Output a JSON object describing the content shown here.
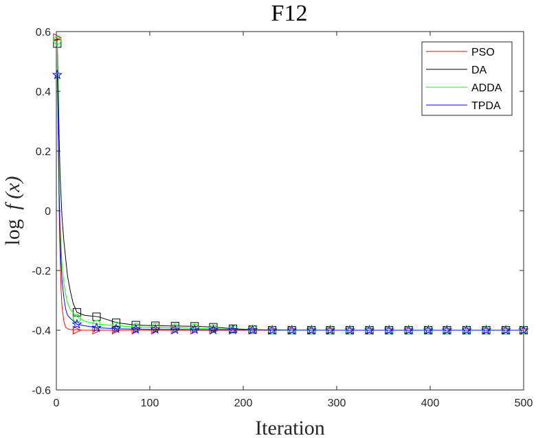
{
  "chart_data": {
    "type": "line",
    "title": "F12",
    "xlabel": "Iteration",
    "ylabel_prefix": "log",
    "ylabel_func": "f",
    "ylabel_arg": "(x)",
    "xlim": [
      0,
      500
    ],
    "ylim": [
      -0.6,
      0.6
    ],
    "xticks": [
      0,
      100,
      200,
      300,
      400,
      500
    ],
    "xtick_labels": [
      "0",
      "100",
      "200",
      "300",
      "400",
      "500"
    ],
    "yticks": [
      -0.6,
      -0.4,
      -0.2,
      0,
      0.2,
      0.4,
      0.6
    ],
    "ytick_labels": [
      "-0.6",
      "-0.4",
      "-0.2",
      "0",
      "0.2",
      "0.4",
      "0.6"
    ],
    "grid": false,
    "legend_position": "top-right",
    "series": [
      {
        "name": "PSO",
        "color": "#ff0000",
        "marker": "triangle-right",
        "x": [
          1,
          2,
          3,
          4,
          5,
          6,
          8,
          10,
          12,
          15,
          20,
          30,
          50,
          100,
          200,
          300,
          400,
          500
        ],
        "y": [
          0.58,
          0.3,
          0.0,
          -0.15,
          -0.26,
          -0.32,
          -0.37,
          -0.39,
          -0.395,
          -0.398,
          -0.399,
          -0.4,
          -0.4,
          -0.4,
          -0.4,
          -0.4,
          -0.4,
          -0.4
        ],
        "marker_x": [
          1,
          22,
          43,
          64,
          85,
          106,
          127,
          148,
          168,
          189,
          210,
          231,
          252,
          273,
          293,
          314,
          335,
          356,
          377,
          398,
          418,
          439,
          460,
          481,
          500
        ],
        "marker_y": [
          0.58,
          -0.4,
          -0.4,
          -0.4,
          -0.4,
          -0.4,
          -0.4,
          -0.4,
          -0.4,
          -0.4,
          -0.4,
          -0.4,
          -0.4,
          -0.4,
          -0.4,
          -0.4,
          -0.4,
          -0.4,
          -0.4,
          -0.4,
          -0.4,
          -0.4,
          -0.4,
          -0.4,
          -0.4
        ]
      },
      {
        "name": "DA",
        "color": "#000000",
        "marker": "square",
        "x": [
          1,
          2,
          3,
          4,
          6,
          8,
          10,
          12,
          15,
          18,
          22,
          30,
          45,
          65,
          85,
          110,
          150,
          170,
          190,
          210,
          250,
          300,
          400,
          500
        ],
        "y": [
          0.56,
          0.42,
          0.25,
          0.12,
          -0.02,
          -0.1,
          -0.16,
          -0.22,
          -0.27,
          -0.31,
          -0.34,
          -0.35,
          -0.355,
          -0.375,
          -0.383,
          -0.385,
          -0.387,
          -0.39,
          -0.395,
          -0.398,
          -0.4,
          -0.4,
          -0.4,
          -0.4
        ],
        "marker_x": [
          1,
          22,
          43,
          64,
          85,
          106,
          127,
          148,
          168,
          189,
          210,
          231,
          252,
          273,
          293,
          314,
          335,
          356,
          377,
          398,
          418,
          439,
          460,
          481,
          500
        ],
        "marker_y": [
          0.56,
          -0.34,
          -0.355,
          -0.375,
          -0.383,
          -0.385,
          -0.386,
          -0.387,
          -0.39,
          -0.395,
          -0.398,
          -0.4,
          -0.4,
          -0.4,
          -0.4,
          -0.4,
          -0.4,
          -0.4,
          -0.4,
          -0.4,
          -0.4,
          -0.4,
          -0.4,
          -0.4,
          -0.4
        ]
      },
      {
        "name": "ADDA",
        "color": "#00ff00",
        "marker": "circle",
        "x": [
          1,
          2,
          3,
          4,
          6,
          8,
          10,
          12,
          15,
          20,
          30,
          45,
          65,
          90,
          130,
          170,
          200,
          250,
          300,
          400,
          500
        ],
        "y": [
          0.57,
          0.3,
          0.08,
          -0.05,
          -0.18,
          -0.24,
          -0.28,
          -0.31,
          -0.33,
          -0.35,
          -0.37,
          -0.38,
          -0.385,
          -0.39,
          -0.392,
          -0.395,
          -0.398,
          -0.4,
          -0.4,
          -0.4,
          -0.4
        ],
        "marker_x": [
          1,
          22,
          43,
          64,
          85,
          106,
          127,
          148,
          168,
          189,
          210,
          231,
          252,
          273,
          293,
          314,
          335,
          356,
          377,
          398,
          418,
          439,
          460,
          481,
          500
        ],
        "marker_y": [
          0.57,
          -0.36,
          -0.38,
          -0.385,
          -0.39,
          -0.39,
          -0.391,
          -0.392,
          -0.395,
          -0.397,
          -0.398,
          -0.4,
          -0.4,
          -0.4,
          -0.4,
          -0.4,
          -0.4,
          -0.4,
          -0.4,
          -0.4,
          -0.4,
          -0.4,
          -0.4,
          -0.4,
          -0.4
        ]
      },
      {
        "name": "TPDA",
        "color": "#0000ff",
        "marker": "star",
        "x": [
          1,
          2,
          3,
          4,
          5,
          6,
          8,
          10,
          12,
          15,
          22,
          30,
          45,
          65,
          100,
          150,
          200,
          300,
          400,
          500
        ],
        "y": [
          0.46,
          0.25,
          0.05,
          -0.08,
          -0.17,
          -0.23,
          -0.29,
          -0.33,
          -0.35,
          -0.36,
          -0.38,
          -0.385,
          -0.392,
          -0.395,
          -0.397,
          -0.398,
          -0.399,
          -0.4,
          -0.4,
          -0.4
        ],
        "marker_x": [
          1,
          22,
          43,
          64,
          85,
          106,
          127,
          148,
          168,
          189,
          210,
          231,
          252,
          273,
          293,
          314,
          335,
          356,
          377,
          398,
          418,
          439,
          460,
          481,
          500
        ],
        "marker_y": [
          0.455,
          -0.38,
          -0.392,
          -0.395,
          -0.397,
          -0.397,
          -0.398,
          -0.398,
          -0.399,
          -0.399,
          -0.399,
          -0.4,
          -0.4,
          -0.4,
          -0.4,
          -0.4,
          -0.4,
          -0.4,
          -0.4,
          -0.4,
          -0.4,
          -0.4,
          -0.4,
          -0.4,
          -0.4
        ]
      }
    ]
  }
}
